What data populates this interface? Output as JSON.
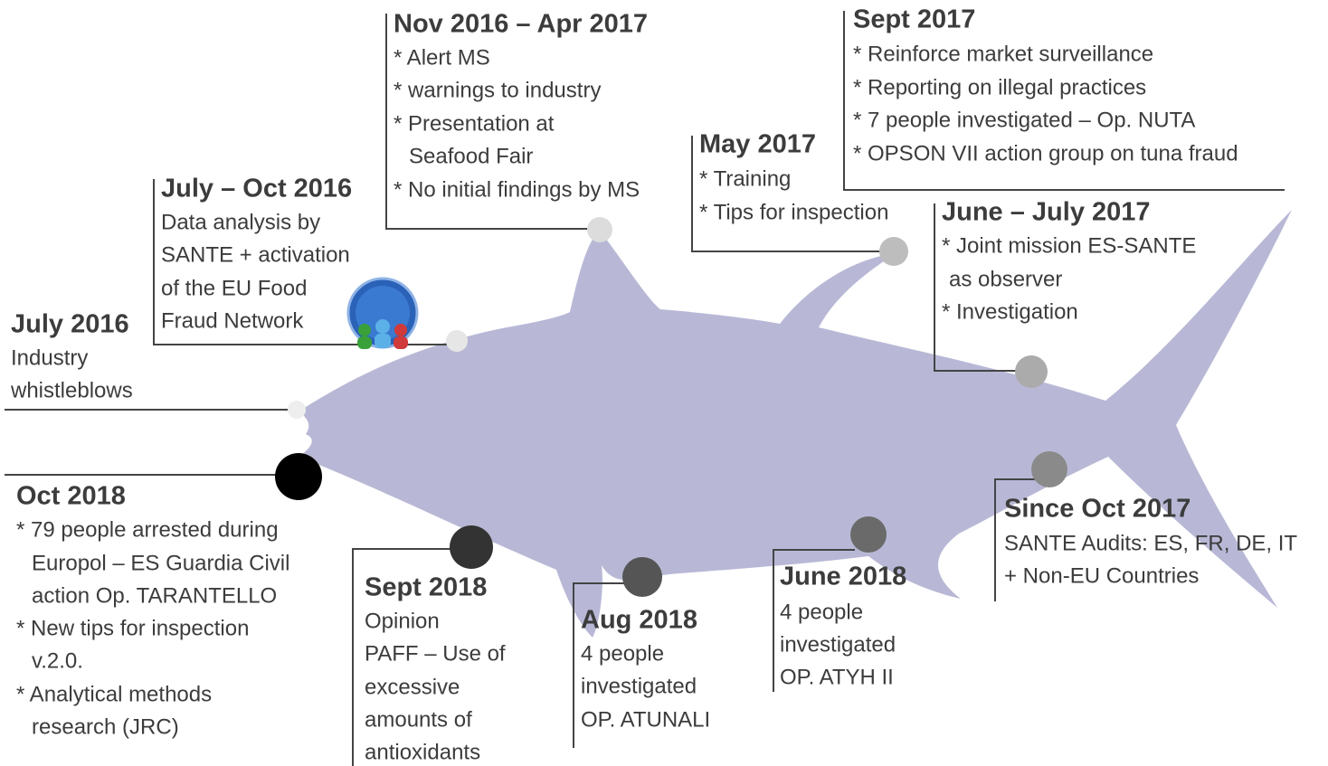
{
  "events": [
    {
      "date": "July 2016",
      "lines": [
        "Industry",
        "whistleblows"
      ]
    },
    {
      "date": "July – Oct 2016",
      "lines": [
        "Data analysis by",
        "SANTE + activation",
        "of the EU Food",
        "Fraud Network"
      ]
    },
    {
      "date": "Nov 2016 – Apr 2017",
      "lines": [
        "* Alert MS",
        "* warnings to industry",
        "* Presentation at",
        "Seafood Fair",
        "* No initial findings by MS"
      ]
    },
    {
      "date": "May 2017",
      "lines": [
        "* Training",
        "* Tips for inspection"
      ]
    },
    {
      "date": "Sept 2017",
      "lines": [
        "* Reinforce market surveillance",
        "* Reporting on illegal practices",
        "* 7 people investigated – Op. NUTA",
        "* OPSON VII action group on tuna fraud"
      ]
    },
    {
      "date": "June – July 2017",
      "lines": [
        "* Joint mission ES-SANTE",
        "as observer",
        "* Investigation"
      ]
    },
    {
      "date": "Since Oct 2017",
      "lines": [
        "SANTE Audits: ES, FR, DE, IT",
        "+ Non-EU Countries"
      ]
    },
    {
      "date": "June 2018",
      "lines": [
        "4 people",
        "investigated",
        "OP. ATYH II"
      ]
    },
    {
      "date": "Aug 2018",
      "lines": [
        "4 people",
        "investigated",
        "OP. ATUNALI"
      ]
    },
    {
      "date": "Sept 2018",
      "lines": [
        "Opinion",
        "PAFF – Use of",
        "excessive",
        "amounts of",
        "antioxidants"
      ]
    },
    {
      "date": "Oct 2018",
      "lines": [
        "* 79 people arrested during",
        "Europol – ES Guardia Civil",
        "action Op. TARANTELLO",
        "* New tips for inspection",
        "v.2.0.",
        "* Analytical methods",
        "research (JRC)"
      ]
    }
  ]
}
